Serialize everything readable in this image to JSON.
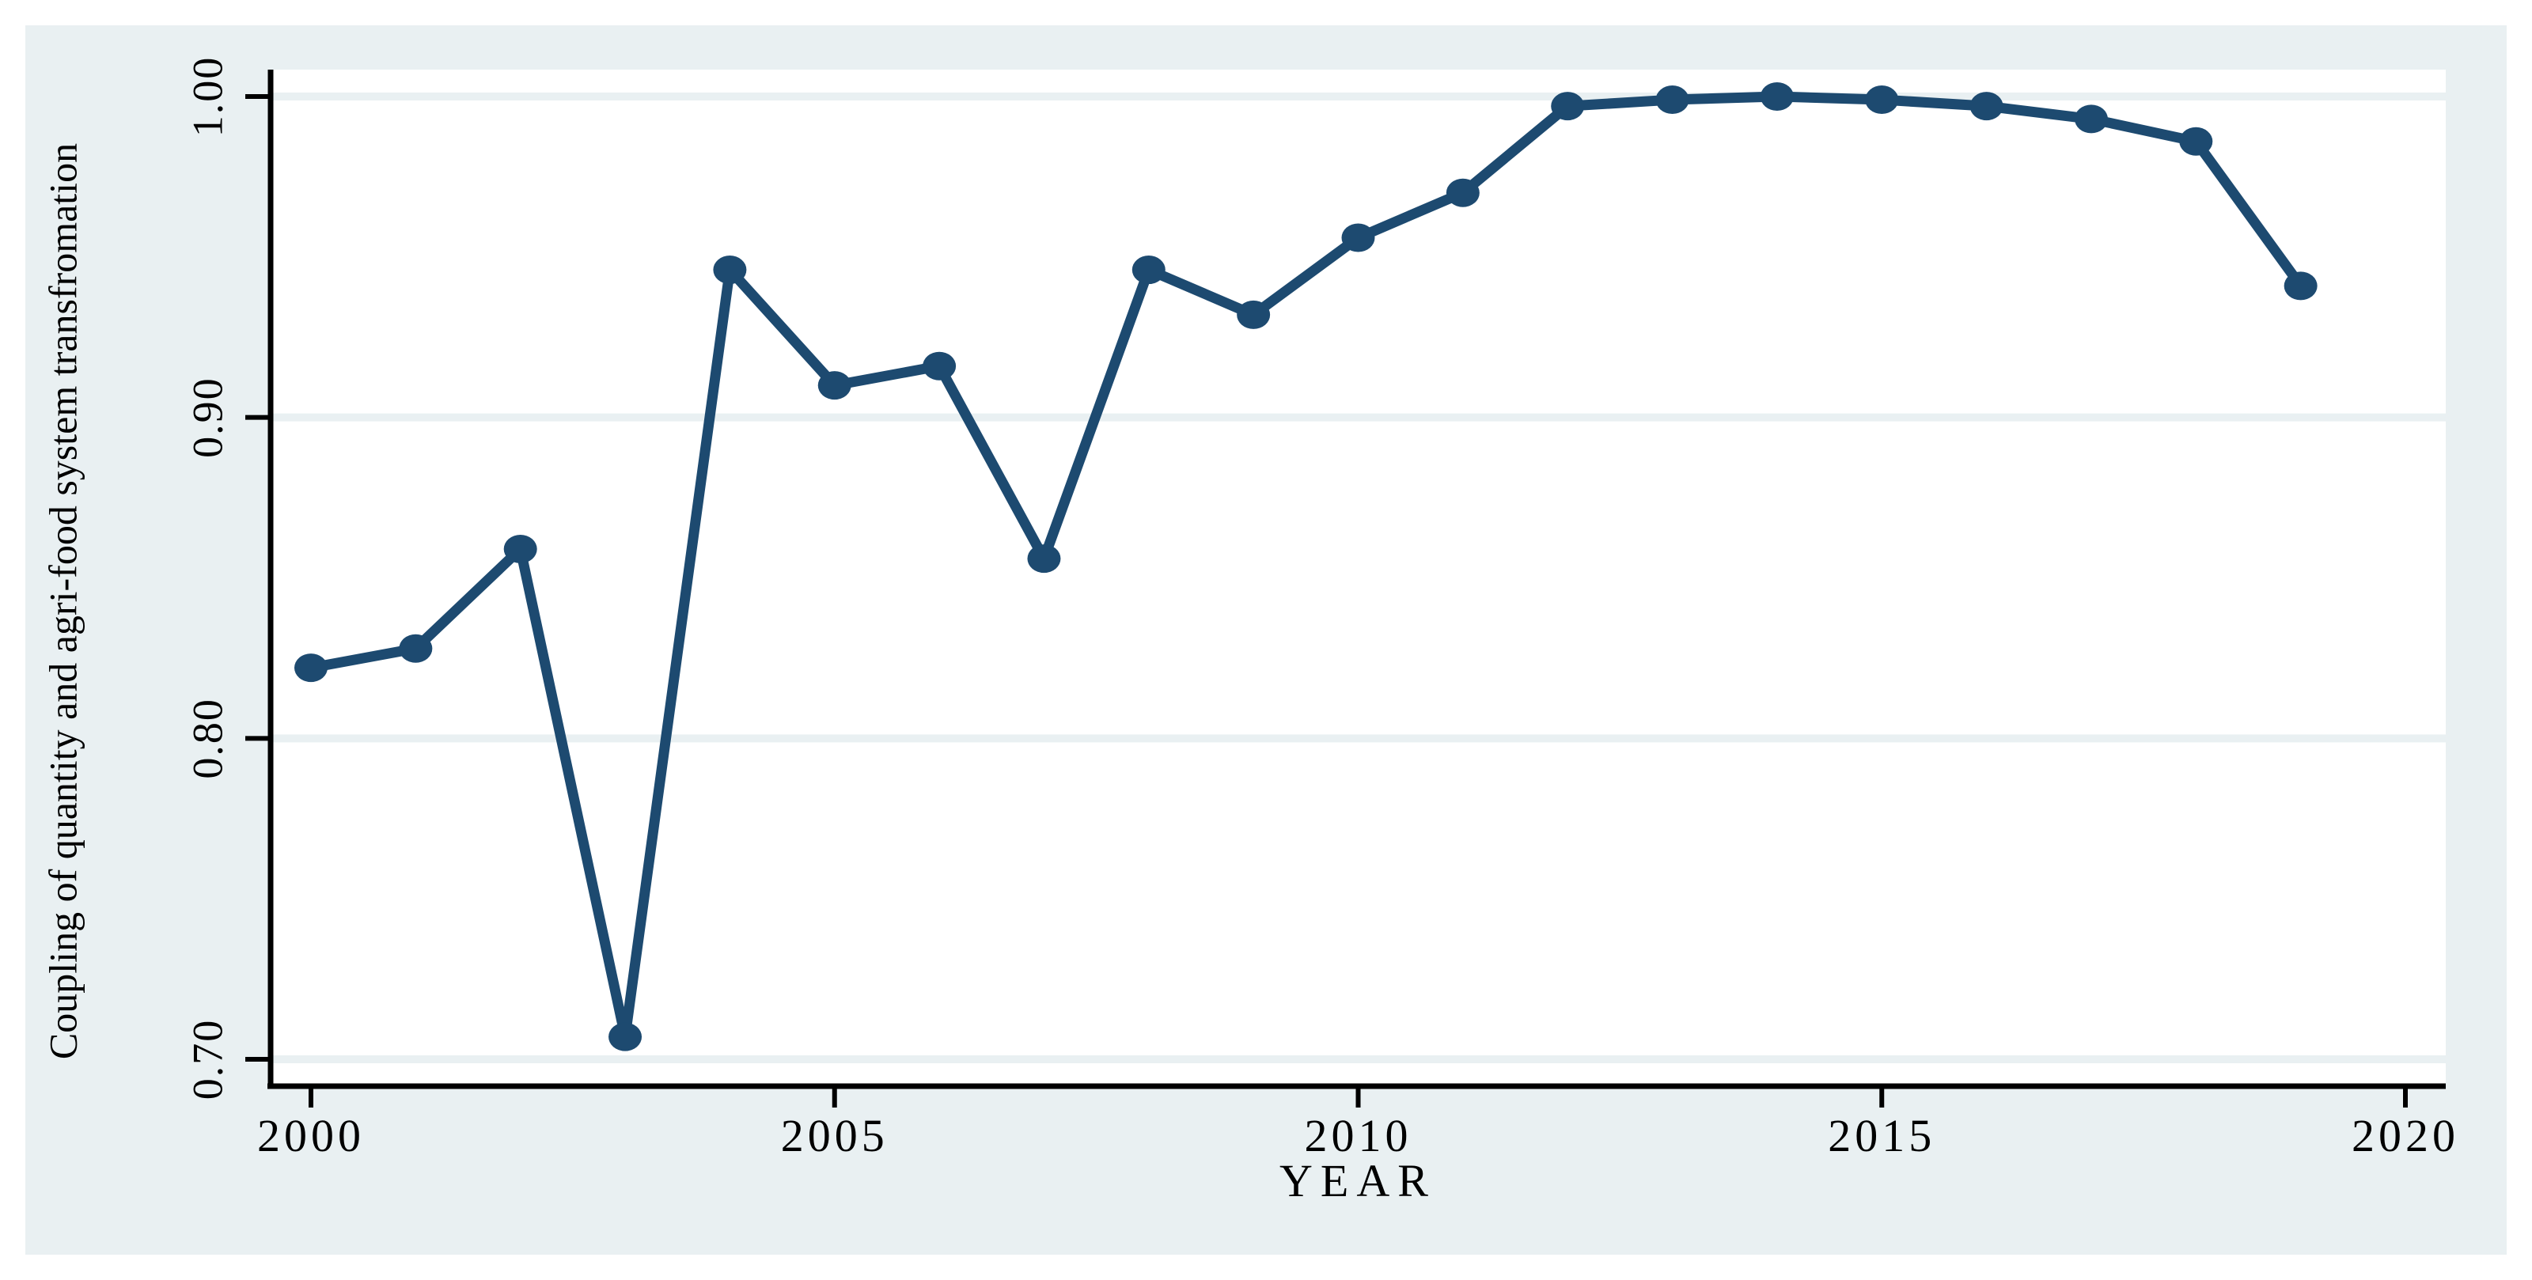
{
  "chart_data": {
    "type": "line",
    "title": "",
    "xlabel": "YEAR",
    "ylabel": "Coupling of quantity and agri-food system transfromation",
    "legend": "none",
    "grid": "horizontal",
    "years": [
      2000,
      2001,
      2002,
      2003,
      2004,
      2005,
      2006,
      2007,
      2008,
      2009,
      2010,
      2011,
      2012,
      2013,
      2014,
      2015,
      2016,
      2017,
      2018,
      2019
    ],
    "values": [
      0.822,
      0.828,
      0.859,
      0.707,
      0.946,
      0.91,
      0.916,
      0.856,
      0.946,
      0.932,
      0.956,
      0.97,
      0.997,
      0.999,
      1.0,
      0.999,
      0.997,
      0.993,
      0.986,
      0.941
    ],
    "xticks": {
      "values": [
        2000,
        2005,
        2010,
        2015,
        2020
      ],
      "labels": [
        "2000",
        "2005",
        "2010",
        "2015",
        "2020"
      ]
    },
    "yticks": {
      "values": [
        0.7,
        0.8,
        0.9,
        1.0
      ],
      "labels": [
        "0.70",
        "0.80",
        "0.90",
        "1.00"
      ]
    },
    "xlim": [
      2000,
      2020
    ],
    "ylim": [
      0.7,
      1.0
    ]
  },
  "colors": {
    "accent": "#1d4a70",
    "figure_bg": "#e9f0f2",
    "plot_bg": "#ffffff",
    "grid": "#e9f0f2",
    "axis": "#000000",
    "text": "#000000",
    "page_bg": "#ffffff"
  }
}
